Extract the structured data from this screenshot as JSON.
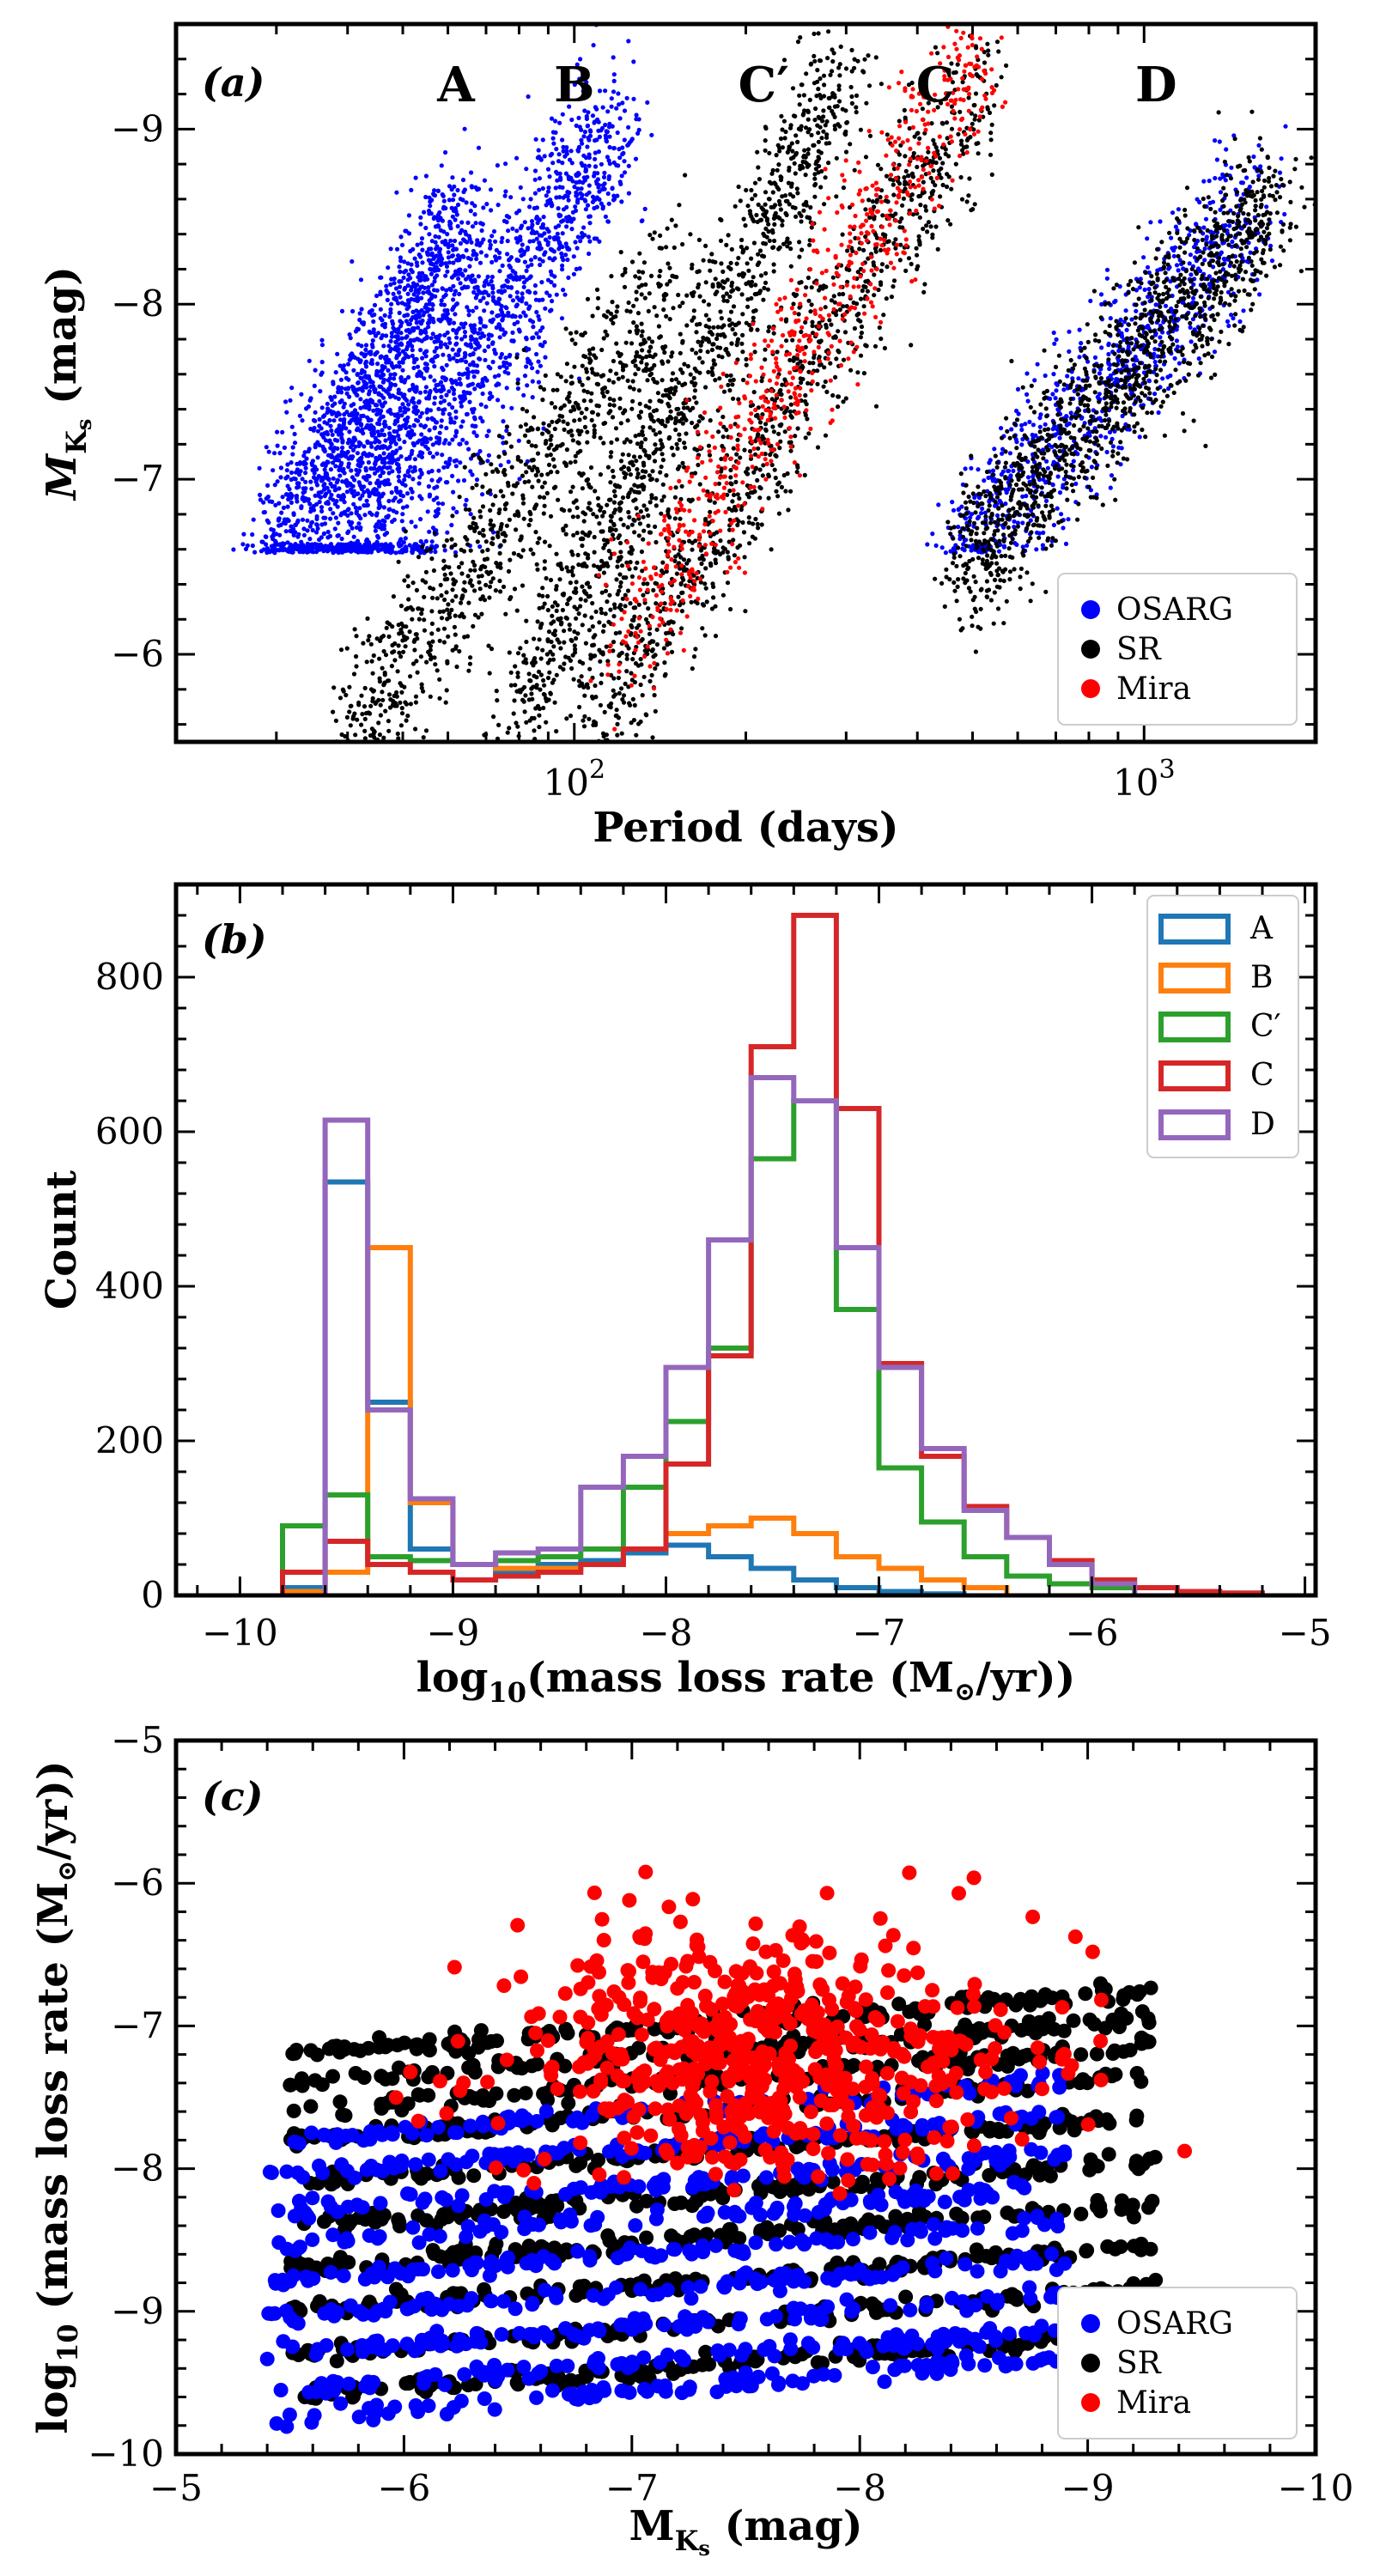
{
  "chart_data": [
    {
      "panel": "(a)",
      "type": "scatter",
      "xscale": "log",
      "xlabel": "Period (days)",
      "ylabel": "M_Ks (mag)",
      "ylabel_main": "M",
      "ylabel_sub": "K",
      "ylabel_subsub": "s",
      "ylabel_unit": " (mag)",
      "xlim": [
        20,
        2000
      ],
      "ylim": [
        -5.5,
        -9.6
      ],
      "xticks": [
        {
          "v": 100,
          "base": "10",
          "exp": "2"
        },
        {
          "v": 1000,
          "base": "10",
          "exp": "3"
        }
      ],
      "yticks": [
        {
          "v": -6,
          "label": "−6"
        },
        {
          "v": -7,
          "label": "−7"
        },
        {
          "v": -8,
          "label": "−8"
        },
        {
          "v": -9,
          "label": "−9"
        }
      ],
      "sequence_labels": [
        {
          "text": "A",
          "period": 62
        },
        {
          "text": "B",
          "period": 100
        },
        {
          "text": "C′",
          "period": 215
        },
        {
          "text": "C",
          "period": 430
        },
        {
          "text": "D",
          "period": 1050
        }
      ],
      "legend": {
        "position": "bottom-right",
        "entries": [
          "OSARG",
          "SR",
          "Mira"
        ]
      },
      "series": [
        {
          "name": "OSARG",
          "color": "#0000ff",
          "sequences": [
            {
              "periods": [
                30,
                65
              ],
              "mags": [
                -6.6,
                -8.5
              ],
              "n": 1400
            },
            {
              "periods": [
                40,
                120
              ],
              "mags": [
                -6.6,
                -9.1
              ],
              "n": 1300
            },
            {
              "periods": [
                35,
                90
              ],
              "mags": [
                -5.5,
                -8.0
              ],
              "n": 300
            },
            {
              "periods": [
                480,
                1600
              ],
              "mags": [
                -6.6,
                -8.6
              ],
              "n": 900
            }
          ]
        },
        {
          "name": "SR",
          "color": "#000000",
          "sequences": [
            {
              "periods": [
                40,
                150
              ],
              "mags": [
                -5.5,
                -8.2
              ],
              "n": 900
            },
            {
              "periods": [
                80,
                300
              ],
              "mags": [
                -5.7,
                -9.3
              ],
              "n": 1200
            },
            {
              "periods": [
                110,
                520
              ],
              "mags": [
                -5.6,
                -9.3
              ],
              "n": 1100
            },
            {
              "periods": [
                480,
                1700
              ],
              "mags": [
                -6.5,
                -8.6
              ],
              "n": 1300
            }
          ]
        },
        {
          "name": "Mira",
          "color": "#ff0000",
          "sequences": [
            {
              "periods": [
                120,
                520
              ],
              "mags": [
                -6.0,
                -9.5
              ],
              "n": 700
            }
          ]
        }
      ]
    },
    {
      "panel": "(b)",
      "type": "histogram",
      "xlabel": "log10(mass loss rate (M☉/yr))",
      "xlabel_pre": "log",
      "xlabel_sub": "10",
      "xlabel_post": "(mass loss rate (M",
      "xlabel_sun": "⊙",
      "xlabel_end": "/yr))",
      "ylabel": "Count",
      "xlim": [
        -10.3,
        -4.95
      ],
      "ylim": [
        0,
        920
      ],
      "xticks": [
        {
          "v": -10,
          "label": "−10"
        },
        {
          "v": -9,
          "label": "−9"
        },
        {
          "v": -8,
          "label": "−8"
        },
        {
          "v": -7,
          "label": "−7"
        },
        {
          "v": -6,
          "label": "−6"
        },
        {
          "v": -5,
          "label": "−5"
        }
      ],
      "yticks": [
        {
          "v": 0,
          "label": "0"
        },
        {
          "v": 200,
          "label": "200"
        },
        {
          "v": 400,
          "label": "400"
        },
        {
          "v": 600,
          "label": "600"
        },
        {
          "v": 800,
          "label": "800"
        }
      ],
      "legend": {
        "position": "top-right",
        "entries": [
          "A",
          "B",
          "C′",
          "C",
          "D"
        ]
      },
      "series": [
        {
          "name": "A",
          "color": "#1f77b4",
          "edges": [
            -9.8,
            -9.6,
            -9.4,
            -9.2,
            -9.0,
            -8.8,
            -8.6,
            -8.4,
            -8.2,
            -8.0,
            -7.8,
            -7.6,
            -7.4,
            -7.2,
            -7.0,
            -6.8,
            -6.6
          ],
          "counts": [
            10,
            535,
            250,
            60,
            40,
            30,
            40,
            45,
            55,
            65,
            50,
            35,
            20,
            10,
            5,
            2
          ]
        },
        {
          "name": "B",
          "color": "#ff7f0e",
          "edges": [
            -9.8,
            -9.6,
            -9.4,
            -9.2,
            -9.0,
            -8.8,
            -8.6,
            -8.4,
            -8.2,
            -8.0,
            -7.8,
            -7.6,
            -7.4,
            -7.2,
            -7.0,
            -6.8,
            -6.6,
            -6.4
          ],
          "counts": [
            5,
            30,
            450,
            120,
            40,
            35,
            35,
            40,
            60,
            80,
            90,
            100,
            80,
            50,
            35,
            20,
            10
          ]
        },
        {
          "name": "C′",
          "color": "#2ca02c",
          "edges": [
            -9.8,
            -9.6,
            -9.4,
            -9.2,
            -9.0,
            -8.8,
            -8.6,
            -8.4,
            -8.2,
            -8.0,
            -7.8,
            -7.6,
            -7.4,
            -7.2,
            -7.0,
            -6.8,
            -6.6,
            -6.4,
            -6.2,
            -6.0,
            -5.8
          ],
          "counts": [
            90,
            130,
            50,
            45,
            40,
            45,
            50,
            60,
            140,
            225,
            320,
            565,
            640,
            370,
            165,
            95,
            50,
            25,
            15,
            10
          ]
        },
        {
          "name": "C",
          "color": "#d62728",
          "edges": [
            -9.8,
            -9.6,
            -9.4,
            -9.2,
            -9.0,
            -8.8,
            -8.6,
            -8.4,
            -8.2,
            -8.0,
            -7.8,
            -7.6,
            -7.4,
            -7.2,
            -7.0,
            -6.8,
            -6.6,
            -6.4,
            -6.2,
            -6.0,
            -5.8,
            -5.6,
            -5.4,
            -5.2
          ],
          "counts": [
            30,
            70,
            40,
            30,
            20,
            25,
            30,
            40,
            60,
            170,
            310,
            710,
            880,
            630,
            300,
            180,
            115,
            75,
            45,
            20,
            10,
            5,
            3
          ]
        },
        {
          "name": "D",
          "color": "#9467bd",
          "edges": [
            -9.6,
            -9.4,
            -9.2,
            -9.0,
            -8.8,
            -8.6,
            -8.4,
            -8.2,
            -8.0,
            -7.8,
            -7.6,
            -7.4,
            -7.2,
            -7.0,
            -6.8,
            -6.6,
            -6.4,
            -6.2,
            -6.0,
            -5.8
          ],
          "counts": [
            615,
            240,
            125,
            40,
            55,
            60,
            140,
            180,
            295,
            460,
            670,
            640,
            450,
            295,
            190,
            110,
            75,
            40,
            15
          ]
        }
      ]
    },
    {
      "panel": "(c)",
      "type": "scatter",
      "xlabel": "M_Ks (mag)",
      "xlabel_main": "M",
      "xlabel_sub": "K",
      "xlabel_subsub": "s",
      "xlabel_unit": " (mag)",
      "ylabel": "log10 (mass loss rate (M☉/yr))",
      "ylabel_pre": "log",
      "ylabel_sub": "10",
      "ylabel_post": " (mass loss rate (M",
      "ylabel_sun": "⊙",
      "ylabel_end": "/yr))",
      "xlim": [
        -5,
        -10
      ],
      "ylim": [
        -10,
        -5
      ],
      "xticks": [
        {
          "v": -5,
          "label": "−5"
        },
        {
          "v": -6,
          "label": "−6"
        },
        {
          "v": -7,
          "label": "−7"
        },
        {
          "v": -8,
          "label": "−8"
        },
        {
          "v": -9,
          "label": "−9"
        },
        {
          "v": -10,
          "label": "−10"
        }
      ],
      "yticks": [
        {
          "v": -5,
          "label": "−5"
        },
        {
          "v": -6,
          "label": "−6"
        },
        {
          "v": -7,
          "label": "−7"
        },
        {
          "v": -8,
          "label": "−8"
        },
        {
          "v": -9,
          "label": "−9"
        },
        {
          "v": -10,
          "label": "−10"
        }
      ],
      "legend": {
        "position": "bottom-right",
        "entries": [
          "OSARG",
          "SR",
          "Mira"
        ]
      },
      "series": [
        {
          "name": "OSARG",
          "color": "#0000ff",
          "stripes": [
            -9.75,
            -9.55,
            -9.3,
            -9.05,
            -8.8,
            -8.55,
            -8.3,
            -8.05,
            -7.8
          ],
          "mk_range": [
            -5.4,
            -8.9
          ],
          "n": 900
        },
        {
          "name": "SR",
          "color": "#000000",
          "stripes": [
            -9.6,
            -9.3,
            -9.0,
            -8.7,
            -8.4,
            -8.1,
            -7.8,
            -7.6,
            -7.4,
            -7.2
          ],
          "mk_range": [
            -5.5,
            -9.3
          ],
          "n": 1300
        },
        {
          "name": "Mira",
          "color": "#ff0000",
          "center": [
            -7.6,
            -7.2
          ],
          "spread": [
            0.55,
            0.45
          ],
          "n": 600
        }
      ]
    }
  ]
}
